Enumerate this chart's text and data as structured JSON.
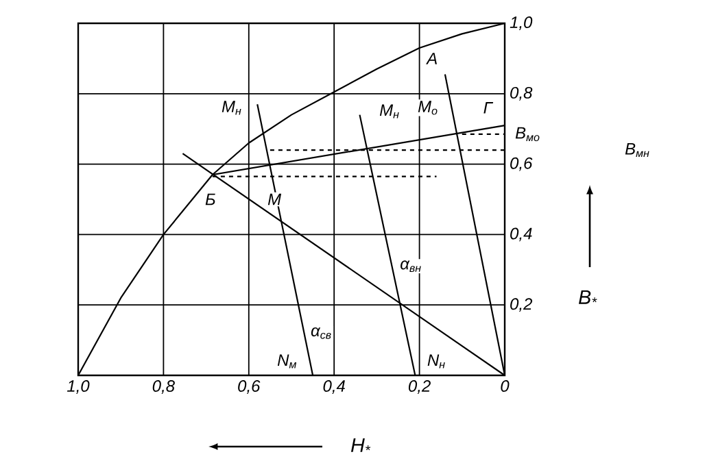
{
  "chart_data": {
    "type": "line",
    "xlabel": "H$_{*}$",
    "ylabel": "B$_{*}$",
    "xlim": [
      1,
      0
    ],
    "ylim": [
      0,
      1
    ],
    "xticks": [
      {
        "value": 1,
        "label": "1,0"
      },
      {
        "value": 0.8,
        "label": "0,8"
      },
      {
        "value": 0.6,
        "label": "0,6"
      },
      {
        "value": 0.4,
        "label": "0,4"
      },
      {
        "value": 0.2,
        "label": "0,2"
      },
      0
    ],
    "yticks": [
      {
        "value": 0.2,
        "label": "0,2"
      },
      {
        "value": 0.4,
        "label": "0,4"
      },
      {
        "value": 0.6,
        "label": "0,6"
      },
      {
        "value": 0.8,
        "label": "0,8"
      },
      {
        "value": 1,
        "label": "1,0"
      }
    ],
    "grid": true,
    "series": [
      {
        "color": "#000000",
        "x": [
          1,
          0.9,
          0.8,
          0.685,
          0.6,
          0.5,
          0.4,
          0.3,
          0.2,
          0.1,
          0
        ],
        "values": [
          0,
          0.22,
          0.4,
          0.57,
          0.66,
          0.74,
          0.805,
          0.87,
          0.93,
          0.97,
          1
        ]
      },
      {
        "color": "#000000",
        "x": [
          0.755,
          0
        ],
        "values": [
          0.63,
          0
        ]
      },
      {
        "color": "#000000",
        "x": [
          0.685,
          0
        ],
        "values": [
          0.57,
          0.71
        ]
      },
      {
        "color": "#000000",
        "x": [
          0.14,
          0
        ],
        "values": [
          0.855,
          0
        ]
      },
      {
        "color": "#000000",
        "x": [
          0.34,
          0.21
        ],
        "values": [
          0.74,
          0
        ]
      },
      {
        "color": "#000000",
        "x": [
          0.58,
          0.45
        ],
        "values": [
          0.77,
          0
        ]
      },
      {
        "color": "#000000",
        "line_style": "dashed",
        "x": [
          0.1,
          0
        ],
        "values": [
          0.685,
          0.685
        ]
      },
      {
        "color": "#000000",
        "line_style": "dashed",
        "x": [
          0.55,
          0
        ],
        "values": [
          0.64,
          0.64
        ]
      },
      {
        "color": "#000000",
        "line_style": "dashed",
        "x": [
          0.685,
          0.16
        ],
        "values": [
          0.565,
          0.565
        ]
      }
    ],
    "annotations": [
      {
        "text": "A",
        "x": 0.17,
        "y": 0.9
      },
      {
        "text": "Б",
        "x": 0.69,
        "y": 0.5
      },
      {
        "text": "Г",
        "x": 0.04,
        "y": 0.76
      },
      {
        "text": "M$_{н}$",
        "x": 0.64,
        "y": 0.76
      },
      {
        "text": "M$_{н}$",
        "x": 0.27,
        "y": 0.75
      },
      {
        "text": "M$_{о}$",
        "x": 0.18,
        "y": 0.76
      },
      {
        "text": "М",
        "x": 0.54,
        "y": 0.5
      },
      {
        "text": "N$_{м}$",
        "x": 0.51,
        "y": 0.04
      },
      {
        "text": "N$_{н}$",
        "x": 0.16,
        "y": 0.04
      },
      {
        "text": "α$_{св}$",
        "x": 0.43,
        "y": 0.12
      },
      {
        "text": "α$_{вн}$",
        "x": 0.22,
        "y": 0.31
      },
      "B$_{мо}$",
      "B$_{мн}$"
    ]
  }
}
